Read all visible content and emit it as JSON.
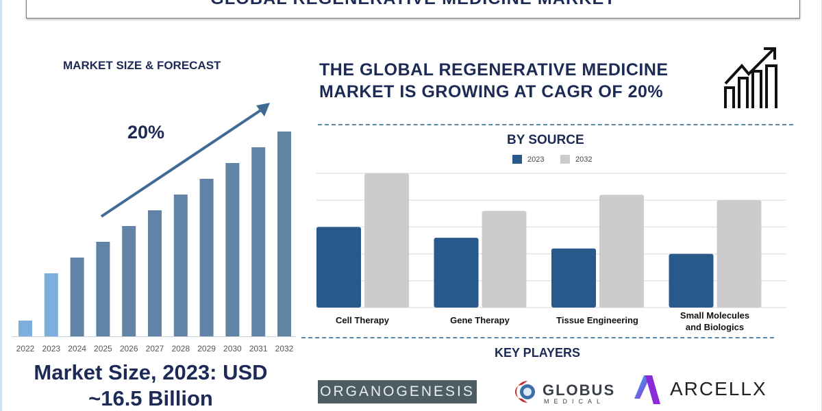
{
  "title": "GLOBAL REGENERATIVE MEDICINE MARKET",
  "left_panel": {
    "heading": "MARKET SIZE & FORECAST",
    "cagr_label": "20%",
    "market_size_line1": "Market Size, 2023: USD",
    "market_size_line2": "~16.5 Billion"
  },
  "headline": {
    "line1": "THE GLOBAL REGENERATIVE MEDICINE",
    "line2": "MARKET IS GROWING AT CAGR OF 20%",
    "icon": "growth-chart-icon"
  },
  "key_players": {
    "heading": "KEY PLAYERS",
    "logos": [
      "ORGANOGENESIS",
      "GLOBUS",
      "MEDICAL",
      "ARCELLX"
    ]
  },
  "colors": {
    "navy": "#1c2a55",
    "bar_light": "#7eaedb",
    "bar_main": "#6184a6",
    "s2023": "#27598a",
    "s2032": "#cccccc",
    "arrow": "#3f6a93"
  },
  "chart_data": [
    {
      "type": "bar",
      "title": "MARKET SIZE & FORECAST",
      "categories": [
        "2022",
        "2023",
        "2024",
        "2025",
        "2026",
        "2027",
        "2028",
        "2029",
        "2030",
        "2031",
        "2032"
      ],
      "values": [
        1,
        4,
        5,
        6,
        7,
        8,
        9,
        10,
        11,
        12,
        13
      ],
      "annotation": "20%",
      "ylim": [
        0,
        13
      ]
    },
    {
      "type": "bar",
      "title": "BY SOURCE",
      "categories": [
        "Cell Therapy",
        "Gene Therapy",
        "Tissue Engineering",
        "Small Molecules and Biologics"
      ],
      "category_lines": [
        [
          "Cell Therapy"
        ],
        [
          "Gene Therapy"
        ],
        [
          "Tissue Engineering"
        ],
        [
          "Small Molecules",
          "and Biologics"
        ]
      ],
      "series": [
        {
          "name": "2023",
          "values": [
            3.0,
            2.6,
            2.2,
            2.0
          ]
        },
        {
          "name": "2032",
          "values": [
            5.0,
            3.6,
            4.2,
            4.0
          ]
        }
      ],
      "ylim": [
        0,
        5
      ],
      "grid": true,
      "legend": "top-center"
    }
  ]
}
